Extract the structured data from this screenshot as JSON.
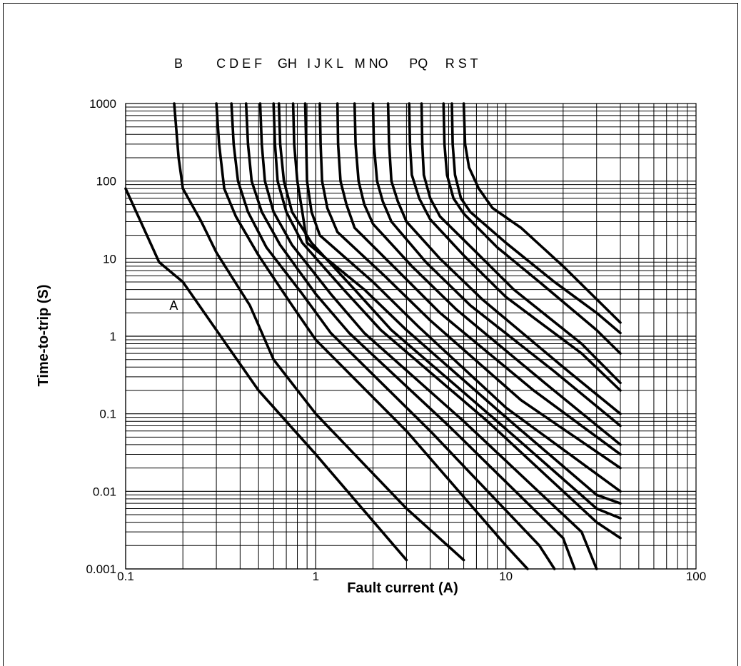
{
  "chart_data": {
    "type": "line",
    "title": "",
    "xlabel": "Fault current (A)",
    "ylabel": "Time-to-trip (S)",
    "xscale": "log",
    "yscale": "log",
    "xlim": [
      0.1,
      100
    ],
    "ylim": [
      0.001,
      1000
    ],
    "grid": true,
    "legend": "none",
    "x_ticks": [
      "0.1",
      "1",
      "10",
      "100"
    ],
    "y_ticks": [
      "0.001",
      "0.01",
      "0.1",
      "1",
      "10",
      "100",
      "1000"
    ],
    "colors": {
      "line": "#000000",
      "grid": "#000000"
    },
    "series": [
      {
        "name": "A",
        "points": [
          [
            0.1,
            80
          ],
          [
            0.12,
            30
          ],
          [
            0.15,
            9
          ],
          [
            0.2,
            5
          ],
          [
            0.3,
            1.2
          ],
          [
            0.5,
            0.2
          ],
          [
            1,
            0.03
          ],
          [
            3,
            0.0013
          ]
        ]
      },
      {
        "name": "B",
        "points": [
          [
            0.18,
            1000
          ],
          [
            0.19,
            200
          ],
          [
            0.2,
            80
          ],
          [
            0.25,
            30
          ],
          [
            0.3,
            12
          ],
          [
            0.45,
            2.5
          ],
          [
            0.6,
            0.5
          ],
          [
            1,
            0.1
          ],
          [
            3,
            0.006
          ],
          [
            6,
            0.0013
          ]
        ]
      },
      {
        "name": "C",
        "points": [
          [
            0.3,
            1000
          ],
          [
            0.31,
            300
          ],
          [
            0.33,
            80
          ],
          [
            0.38,
            35
          ],
          [
            0.5,
            11
          ],
          [
            0.75,
            2.5
          ],
          [
            1,
            0.9
          ],
          [
            3,
            0.06
          ],
          [
            10,
            0.002
          ],
          [
            13,
            0.001
          ]
        ]
      },
      {
        "name": "D",
        "points": [
          [
            0.36,
            1000
          ],
          [
            0.37,
            300
          ],
          [
            0.39,
            100
          ],
          [
            0.44,
            40
          ],
          [
            0.55,
            14
          ],
          [
            0.85,
            3.5
          ],
          [
            1.2,
            1.1
          ],
          [
            4,
            0.06
          ],
          [
            15,
            0.002
          ],
          [
            18,
            0.001
          ]
        ]
      },
      {
        "name": "E",
        "points": [
          [
            0.43,
            1000
          ],
          [
            0.44,
            300
          ],
          [
            0.46,
            100
          ],
          [
            0.52,
            40
          ],
          [
            0.65,
            15
          ],
          [
            1,
            3.5
          ],
          [
            1.5,
            1.1
          ],
          [
            5,
            0.07
          ],
          [
            20,
            0.0025
          ],
          [
            23,
            0.001
          ]
        ]
      },
      {
        "name": "F",
        "points": [
          [
            0.51,
            1000
          ],
          [
            0.52,
            300
          ],
          [
            0.54,
            100
          ],
          [
            0.6,
            40
          ],
          [
            0.75,
            15
          ],
          [
            1.2,
            3.5
          ],
          [
            1.8,
            1.1
          ],
          [
            6,
            0.08
          ],
          [
            25,
            0.003
          ],
          [
            30,
            0.001
          ]
        ]
      },
      {
        "name": "G",
        "points": [
          [
            0.6,
            1000
          ],
          [
            0.61,
            300
          ],
          [
            0.63,
            100
          ],
          [
            0.7,
            40
          ],
          [
            0.85,
            16
          ],
          [
            1.4,
            4
          ],
          [
            2.2,
            1.2
          ],
          [
            8,
            0.08
          ],
          [
            30,
            0.004
          ],
          [
            40,
            0.0025
          ]
        ]
      },
      {
        "name": "H",
        "points": [
          [
            0.64,
            1000
          ],
          [
            0.65,
            300
          ],
          [
            0.68,
            100
          ],
          [
            0.75,
            40
          ],
          [
            0.95,
            16
          ],
          [
            1.6,
            4
          ],
          [
            2.5,
            1.2
          ],
          [
            9,
            0.08
          ],
          [
            30,
            0.006
          ],
          [
            40,
            0.0045
          ]
        ]
      },
      {
        "name": "I",
        "points": [
          [
            0.76,
            1000
          ],
          [
            0.77,
            300
          ],
          [
            0.8,
            100
          ],
          [
            0.85,
            40
          ],
          [
            0.9,
            16
          ],
          [
            1.8,
            4
          ],
          [
            3,
            1.2
          ],
          [
            10,
            0.09
          ],
          [
            30,
            0.009
          ],
          [
            40,
            0.007
          ]
        ]
      },
      {
        "name": "J",
        "points": [
          [
            0.88,
            1000
          ],
          [
            0.89,
            300
          ],
          [
            0.9,
            100
          ],
          [
            0.95,
            40
          ],
          [
            1.05,
            20
          ],
          [
            2,
            5
          ],
          [
            3.5,
            1.3
          ],
          [
            10,
            0.12
          ],
          [
            40,
            0.01
          ]
        ]
      },
      {
        "name": "K",
        "points": [
          [
            1.05,
            1000
          ],
          [
            1.06,
            300
          ],
          [
            1.08,
            100
          ],
          [
            1.15,
            45
          ],
          [
            1.3,
            22
          ],
          [
            2.3,
            6
          ],
          [
            4,
            1.6
          ],
          [
            12,
            0.15
          ],
          [
            40,
            0.02
          ]
        ]
      },
      {
        "name": "L",
        "points": [
          [
            1.3,
            1000
          ],
          [
            1.31,
            300
          ],
          [
            1.35,
            100
          ],
          [
            1.45,
            50
          ],
          [
            1.6,
            25
          ],
          [
            2.7,
            7
          ],
          [
            4.5,
            2
          ],
          [
            14,
            0.2
          ],
          [
            40,
            0.03
          ]
        ]
      },
      {
        "name": "M",
        "points": [
          [
            1.6,
            1000
          ],
          [
            1.62,
            300
          ],
          [
            1.68,
            100
          ],
          [
            1.8,
            50
          ],
          [
            2,
            28
          ],
          [
            3.2,
            8
          ],
          [
            5.5,
            2.2
          ],
          [
            16,
            0.25
          ],
          [
            40,
            0.04
          ]
        ]
      },
      {
        "name": "N",
        "points": [
          [
            2,
            1000
          ],
          [
            2.02,
            300
          ],
          [
            2.1,
            100
          ],
          [
            2.25,
            55
          ],
          [
            2.5,
            30
          ],
          [
            3.8,
            9
          ],
          [
            6.5,
            2.5
          ],
          [
            18,
            0.35
          ],
          [
            40,
            0.07
          ]
        ]
      },
      {
        "name": "O",
        "points": [
          [
            2.4,
            1000
          ],
          [
            2.43,
            300
          ],
          [
            2.5,
            100
          ],
          [
            2.7,
            55
          ],
          [
            3,
            30
          ],
          [
            4.5,
            10
          ],
          [
            7.5,
            3
          ],
          [
            20,
            0.4
          ],
          [
            40,
            0.1
          ]
        ]
      },
      {
        "name": "P",
        "points": [
          [
            3.1,
            1000
          ],
          [
            3.13,
            300
          ],
          [
            3.2,
            120
          ],
          [
            3.5,
            60
          ],
          [
            4,
            32
          ],
          [
            6,
            11
          ],
          [
            10,
            3.2
          ],
          [
            25,
            0.6
          ],
          [
            40,
            0.2
          ]
        ]
      },
      {
        "name": "Q",
        "points": [
          [
            3.6,
            1000
          ],
          [
            3.63,
            300
          ],
          [
            3.7,
            120
          ],
          [
            4,
            60
          ],
          [
            4.5,
            35
          ],
          [
            7,
            12
          ],
          [
            11,
            4
          ],
          [
            25,
            0.8
          ],
          [
            40,
            0.25
          ]
        ]
      },
      {
        "name": "R",
        "points": [
          [
            4.7,
            1000
          ],
          [
            4.75,
            300
          ],
          [
            4.9,
            120
          ],
          [
            5.3,
            60
          ],
          [
            6,
            38
          ],
          [
            9,
            14
          ],
          [
            15,
            5
          ],
          [
            30,
            1.2
          ],
          [
            40,
            0.6
          ]
        ]
      },
      {
        "name": "S",
        "points": [
          [
            5.2,
            1000
          ],
          [
            5.25,
            300
          ],
          [
            5.4,
            120
          ],
          [
            5.8,
            60
          ],
          [
            6.5,
            40
          ],
          [
            10,
            16
          ],
          [
            18,
            5
          ],
          [
            30,
            2
          ],
          [
            40,
            1.1
          ]
        ]
      },
      {
        "name": "T",
        "points": [
          [
            6,
            1000
          ],
          [
            6.1,
            300
          ],
          [
            6.4,
            150
          ],
          [
            7.2,
            80
          ],
          [
            8.5,
            45
          ],
          [
            12,
            25
          ],
          [
            20,
            8
          ],
          [
            40,
            1.5
          ]
        ]
      }
    ],
    "curve_labels": [
      {
        "text": "A",
        "x": 0.17,
        "y": 2.5
      },
      {
        "text": "B",
        "x": 0.18,
        "y": 5000
      },
      {
        "text": "C D E F",
        "x": 0.3,
        "y": 5000
      },
      {
        "text": "GH",
        "x": 0.63,
        "y": 5000
      },
      {
        "text": "I J K L",
        "x": 0.9,
        "y": 5000
      },
      {
        "text": "M NO",
        "x": 1.6,
        "y": 5000
      },
      {
        "text": "PQ",
        "x": 3.1,
        "y": 5000
      },
      {
        "text": "R S T",
        "x": 4.8,
        "y": 5000
      }
    ]
  }
}
